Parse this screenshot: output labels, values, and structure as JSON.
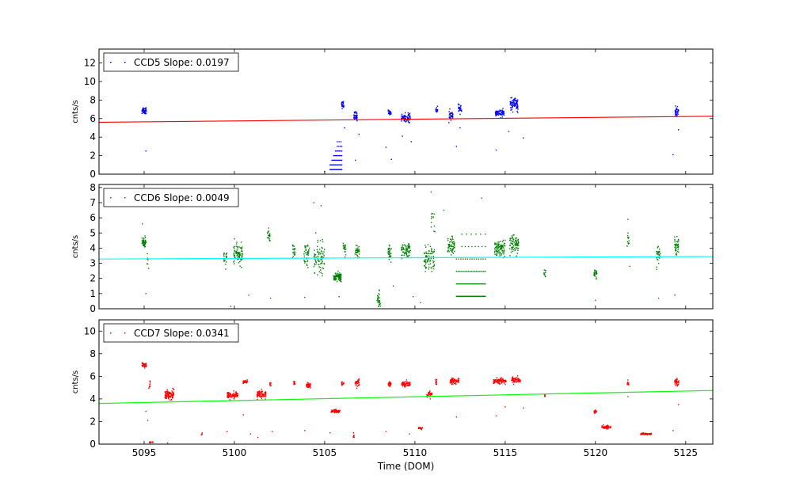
{
  "xlabel": "Time (DOM)",
  "chart_data": [
    {
      "type": "scatter",
      "legend": "CCD5 Slope: 0.0197",
      "ylabel": "cnts/s",
      "xlim": [
        5092.5,
        5126.5
      ],
      "ylim": [
        0,
        13.5
      ],
      "yticks": [
        0,
        2,
        4,
        6,
        8,
        10,
        12
      ],
      "xticks": [
        5095,
        5100,
        5105,
        5110,
        5115,
        5120,
        5125
      ],
      "legend_position": "top-left",
      "point_color": "#0000ff",
      "fit_color": "#ff0000",
      "fit": {
        "x": [
          5092.5,
          5126.5
        ],
        "y": [
          5.6,
          6.25
        ]
      },
      "clusters": [
        {
          "x": 5095.0,
          "y": 6.9,
          "sx": 0.12,
          "sy": 0.35,
          "n": 45
        },
        {
          "x": 5106.0,
          "y": 7.5,
          "sx": 0.08,
          "sy": 0.3,
          "n": 25
        },
        {
          "x": 5106.7,
          "y": 6.3,
          "sx": 0.1,
          "sy": 0.4,
          "n": 35
        },
        {
          "x": 5108.6,
          "y": 6.6,
          "sx": 0.08,
          "sy": 0.25,
          "n": 20
        },
        {
          "x": 5109.5,
          "y": 6.1,
          "sx": 0.25,
          "sy": 0.4,
          "n": 70
        },
        {
          "x": 5111.2,
          "y": 6.9,
          "sx": 0.06,
          "sy": 0.25,
          "n": 15
        },
        {
          "x": 5112.0,
          "y": 6.4,
          "sx": 0.12,
          "sy": 0.4,
          "n": 35
        },
        {
          "x": 5112.5,
          "y": 7.0,
          "sx": 0.1,
          "sy": 0.35,
          "n": 25
        },
        {
          "x": 5114.7,
          "y": 6.6,
          "sx": 0.25,
          "sy": 0.3,
          "n": 70
        },
        {
          "x": 5115.5,
          "y": 7.5,
          "sx": 0.22,
          "sy": 0.55,
          "n": 80
        },
        {
          "x": 5124.5,
          "y": 6.7,
          "sx": 0.1,
          "sy": 0.45,
          "n": 35
        }
      ],
      "levels": [
        {
          "y": 0.5,
          "x0": 5105.3,
          "x1": 5105.95,
          "n": 14
        },
        {
          "y": 1.0,
          "x0": 5105.3,
          "x1": 5105.95,
          "n": 12
        },
        {
          "y": 1.5,
          "x0": 5105.4,
          "x1": 5105.95,
          "n": 10
        },
        {
          "y": 2.0,
          "x0": 5105.5,
          "x1": 5105.95,
          "n": 8
        },
        {
          "y": 2.5,
          "x0": 5105.6,
          "x1": 5105.95,
          "n": 6
        },
        {
          "y": 3.0,
          "x0": 5105.7,
          "x1": 5105.95,
          "n": 4
        },
        {
          "y": 3.5,
          "x0": 5105.7,
          "x1": 5105.9,
          "n": 3
        }
      ],
      "outliers": [
        {
          "x": 5095.1,
          "y": 2.5
        },
        {
          "x": 5106.1,
          "y": 5.0
        },
        {
          "x": 5106.7,
          "y": 1.5
        },
        {
          "x": 5106.9,
          "y": 4.3
        },
        {
          "x": 5108.4,
          "y": 2.9
        },
        {
          "x": 5108.7,
          "y": 1.6
        },
        {
          "x": 5109.3,
          "y": 4.1
        },
        {
          "x": 5109.8,
          "y": 3.5
        },
        {
          "x": 5112.3,
          "y": 3.0
        },
        {
          "x": 5112.5,
          "y": 5.0
        },
        {
          "x": 5114.5,
          "y": 2.6
        },
        {
          "x": 5115.2,
          "y": 4.6
        },
        {
          "x": 5116.0,
          "y": 3.9
        },
        {
          "x": 5124.3,
          "y": 2.1
        },
        {
          "x": 5124.6,
          "y": 4.8
        },
        {
          "x": 5105.0,
          "y": 0.3
        }
      ]
    },
    {
      "type": "scatter",
      "legend": "CCD6 Slope: 0.0049",
      "ylabel": "cnts/s",
      "xlim": [
        5092.5,
        5126.5
      ],
      "ylim": [
        0,
        8.2
      ],
      "yticks": [
        0,
        1,
        2,
        3,
        4,
        5,
        6,
        7,
        8
      ],
      "xticks": [
        5095,
        5100,
        5105,
        5110,
        5115,
        5120,
        5125
      ],
      "legend_position": "top-left",
      "point_color": "#008000",
      "fit_color": "#00ffff",
      "fit": {
        "x": [
          5092.5,
          5126.5
        ],
        "y": [
          3.28,
          3.45
        ]
      },
      "clusters": [
        {
          "x": 5095.0,
          "y": 4.4,
          "sx": 0.12,
          "sy": 0.35,
          "n": 45
        },
        {
          "x": 5095.2,
          "y": 3.0,
          "sx": 0.05,
          "sy": 0.5,
          "n": 8
        },
        {
          "x": 5099.5,
          "y": 3.3,
          "sx": 0.1,
          "sy": 0.4,
          "n": 20
        },
        {
          "x": 5100.2,
          "y": 3.6,
          "sx": 0.25,
          "sy": 0.55,
          "n": 90
        },
        {
          "x": 5101.9,
          "y": 4.8,
          "sx": 0.08,
          "sy": 0.35,
          "n": 20
        },
        {
          "x": 5103.3,
          "y": 3.8,
          "sx": 0.08,
          "sy": 0.4,
          "n": 20
        },
        {
          "x": 5104.0,
          "y": 3.6,
          "sx": 0.15,
          "sy": 0.6,
          "n": 40
        },
        {
          "x": 5104.7,
          "y": 3.3,
          "sx": 0.3,
          "sy": 0.9,
          "n": 80
        },
        {
          "x": 5105.7,
          "y": 2.1,
          "sx": 0.22,
          "sy": 0.25,
          "n": 90
        },
        {
          "x": 5106.1,
          "y": 4.0,
          "sx": 0.08,
          "sy": 0.35,
          "n": 20
        },
        {
          "x": 5106.8,
          "y": 3.8,
          "sx": 0.12,
          "sy": 0.35,
          "n": 35
        },
        {
          "x": 5108.0,
          "y": 0.6,
          "sx": 0.1,
          "sy": 0.45,
          "n": 30
        },
        {
          "x": 5108.6,
          "y": 3.7,
          "sx": 0.1,
          "sy": 0.4,
          "n": 30
        },
        {
          "x": 5109.5,
          "y": 3.8,
          "sx": 0.25,
          "sy": 0.45,
          "n": 70
        },
        {
          "x": 5110.8,
          "y": 3.3,
          "sx": 0.3,
          "sy": 0.7,
          "n": 80
        },
        {
          "x": 5111.0,
          "y": 5.5,
          "sx": 0.12,
          "sy": 0.9,
          "n": 12
        },
        {
          "x": 5112.0,
          "y": 4.1,
          "sx": 0.2,
          "sy": 0.5,
          "n": 60
        },
        {
          "x": 5114.7,
          "y": 4.0,
          "sx": 0.3,
          "sy": 0.4,
          "n": 90
        },
        {
          "x": 5115.5,
          "y": 4.2,
          "sx": 0.25,
          "sy": 0.5,
          "n": 80
        },
        {
          "x": 5117.2,
          "y": 2.3,
          "sx": 0.05,
          "sy": 0.25,
          "n": 10
        },
        {
          "x": 5120.0,
          "y": 2.3,
          "sx": 0.08,
          "sy": 0.25,
          "n": 25
        },
        {
          "x": 5121.8,
          "y": 4.5,
          "sx": 0.06,
          "sy": 0.4,
          "n": 12
        },
        {
          "x": 5123.5,
          "y": 3.6,
          "sx": 0.12,
          "sy": 0.5,
          "n": 30
        },
        {
          "x": 5124.5,
          "y": 4.2,
          "sx": 0.12,
          "sy": 0.5,
          "n": 40
        }
      ],
      "levels": [
        {
          "y": 0.82,
          "x0": 5112.3,
          "x1": 5113.9,
          "n": 35
        },
        {
          "y": 1.64,
          "x0": 5112.3,
          "x1": 5113.9,
          "n": 28
        },
        {
          "y": 2.46,
          "x0": 5112.3,
          "x1": 5113.9,
          "n": 20
        },
        {
          "y": 3.28,
          "x0": 5112.3,
          "x1": 5113.9,
          "n": 14
        },
        {
          "y": 4.1,
          "x0": 5112.6,
          "x1": 5113.9,
          "n": 8
        },
        {
          "y": 4.92,
          "x0": 5112.6,
          "x1": 5113.9,
          "n": 6
        }
      ],
      "outliers": [
        {
          "x": 5095.1,
          "y": 1.0
        },
        {
          "x": 5094.9,
          "y": 5.6
        },
        {
          "x": 5099.8,
          "y": 0.15
        },
        {
          "x": 5100.8,
          "y": 0.9
        },
        {
          "x": 5102.0,
          "y": 0.7
        },
        {
          "x": 5103.9,
          "y": 0.75
        },
        {
          "x": 5104.4,
          "y": 7.0
        },
        {
          "x": 5104.8,
          "y": 6.8
        },
        {
          "x": 5105.8,
          "y": 0.8
        },
        {
          "x": 5110.3,
          "y": 0.4
        },
        {
          "x": 5110.9,
          "y": 7.7
        },
        {
          "x": 5111.6,
          "y": 6.5
        },
        {
          "x": 5113.7,
          "y": 7.3
        },
        {
          "x": 5120.0,
          "y": 0.55
        },
        {
          "x": 5121.8,
          "y": 5.9
        },
        {
          "x": 5121.9,
          "y": 2.8
        },
        {
          "x": 5123.5,
          "y": 0.7
        },
        {
          "x": 5124.4,
          "y": 0.9
        },
        {
          "x": 5108.8,
          "y": 1.5
        },
        {
          "x": 5109.9,
          "y": 0.8
        }
      ]
    },
    {
      "type": "scatter",
      "legend": "CCD7 Slope: 0.0341",
      "ylabel": "cnts/s",
      "xlabel": "Time (DOM)",
      "xlim": [
        5092.5,
        5126.5
      ],
      "ylim": [
        0,
        11
      ],
      "yticks": [
        0,
        2,
        4,
        6,
        8,
        10
      ],
      "xticks": [
        5095,
        5100,
        5105,
        5110,
        5115,
        5120,
        5125
      ],
      "legend_position": "top-left",
      "point_color": "#ff0000",
      "fit_color": "#00ff00",
      "fit": {
        "x": [
          5092.5,
          5126.5
        ],
        "y": [
          3.6,
          4.75
        ]
      },
      "clusters": [
        {
          "x": 5095.0,
          "y": 7.0,
          "sx": 0.12,
          "sy": 0.15,
          "n": 45
        },
        {
          "x": 5095.3,
          "y": 5.2,
          "sx": 0.05,
          "sy": 0.35,
          "n": 10
        },
        {
          "x": 5095.4,
          "y": 0.15,
          "sx": 0.1,
          "sy": 0.05,
          "n": 15
        },
        {
          "x": 5096.4,
          "y": 4.4,
          "sx": 0.25,
          "sy": 0.35,
          "n": 90
        },
        {
          "x": 5098.2,
          "y": 0.9,
          "sx": 0.03,
          "sy": 0.08,
          "n": 5
        },
        {
          "x": 5099.9,
          "y": 4.3,
          "sx": 0.3,
          "sy": 0.25,
          "n": 90
        },
        {
          "x": 5100.6,
          "y": 5.5,
          "sx": 0.12,
          "sy": 0.15,
          "n": 30
        },
        {
          "x": 5101.5,
          "y": 4.4,
          "sx": 0.25,
          "sy": 0.3,
          "n": 80
        },
        {
          "x": 5102.0,
          "y": 5.3,
          "sx": 0.04,
          "sy": 0.2,
          "n": 10
        },
        {
          "x": 5103.3,
          "y": 5.4,
          "sx": 0.05,
          "sy": 0.15,
          "n": 12
        },
        {
          "x": 5104.1,
          "y": 5.2,
          "sx": 0.12,
          "sy": 0.2,
          "n": 35
        },
        {
          "x": 5105.6,
          "y": 2.9,
          "sx": 0.25,
          "sy": 0.12,
          "n": 70
        },
        {
          "x": 5106.0,
          "y": 5.3,
          "sx": 0.06,
          "sy": 0.2,
          "n": 15
        },
        {
          "x": 5106.8,
          "y": 5.4,
          "sx": 0.12,
          "sy": 0.25,
          "n": 35
        },
        {
          "x": 5106.6,
          "y": 0.6,
          "sx": 0.03,
          "sy": 0.15,
          "n": 8
        },
        {
          "x": 5108.6,
          "y": 5.3,
          "sx": 0.08,
          "sy": 0.15,
          "n": 25
        },
        {
          "x": 5109.5,
          "y": 5.3,
          "sx": 0.25,
          "sy": 0.2,
          "n": 70
        },
        {
          "x": 5110.3,
          "y": 1.4,
          "sx": 0.12,
          "sy": 0.12,
          "n": 20
        },
        {
          "x": 5110.8,
          "y": 4.4,
          "sx": 0.15,
          "sy": 0.2,
          "n": 30
        },
        {
          "x": 5111.2,
          "y": 5.5,
          "sx": 0.05,
          "sy": 0.2,
          "n": 12
        },
        {
          "x": 5112.2,
          "y": 5.6,
          "sx": 0.25,
          "sy": 0.2,
          "n": 70
        },
        {
          "x": 5114.7,
          "y": 5.6,
          "sx": 0.35,
          "sy": 0.2,
          "n": 100
        },
        {
          "x": 5115.6,
          "y": 5.7,
          "sx": 0.25,
          "sy": 0.2,
          "n": 70
        },
        {
          "x": 5117.2,
          "y": 4.3,
          "sx": 0.04,
          "sy": 0.2,
          "n": 6
        },
        {
          "x": 5120.0,
          "y": 2.9,
          "sx": 0.08,
          "sy": 0.15,
          "n": 20
        },
        {
          "x": 5120.6,
          "y": 1.5,
          "sx": 0.25,
          "sy": 0.12,
          "n": 60
        },
        {
          "x": 5121.8,
          "y": 5.4,
          "sx": 0.05,
          "sy": 0.25,
          "n": 12
        },
        {
          "x": 5122.8,
          "y": 0.9,
          "sx": 0.3,
          "sy": 0.07,
          "n": 70
        },
        {
          "x": 5124.5,
          "y": 5.5,
          "sx": 0.12,
          "sy": 0.2,
          "n": 35
        }
      ],
      "levels": [],
      "outliers": [
        {
          "x": 5095.2,
          "y": 2.1
        },
        {
          "x": 5095.1,
          "y": 2.9
        },
        {
          "x": 5096.3,
          "y": 0.1
        },
        {
          "x": 5099.6,
          "y": 1.1
        },
        {
          "x": 5100.5,
          "y": 2.6
        },
        {
          "x": 5100.9,
          "y": 0.9
        },
        {
          "x": 5101.3,
          "y": 0.6
        },
        {
          "x": 5102.1,
          "y": 1.1
        },
        {
          "x": 5103.9,
          "y": 1.2
        },
        {
          "x": 5105.3,
          "y": 1.0
        },
        {
          "x": 5106.6,
          "y": 1.0
        },
        {
          "x": 5108.4,
          "y": 1.1
        },
        {
          "x": 5109.7,
          "y": 0.9
        },
        {
          "x": 5112.3,
          "y": 2.4
        },
        {
          "x": 5114.5,
          "y": 2.5
        },
        {
          "x": 5115.0,
          "y": 3.3
        },
        {
          "x": 5116.0,
          "y": 3.2
        },
        {
          "x": 5121.8,
          "y": 4.2
        },
        {
          "x": 5124.3,
          "y": 1.2
        },
        {
          "x": 5124.6,
          "y": 3.5
        }
      ]
    }
  ]
}
